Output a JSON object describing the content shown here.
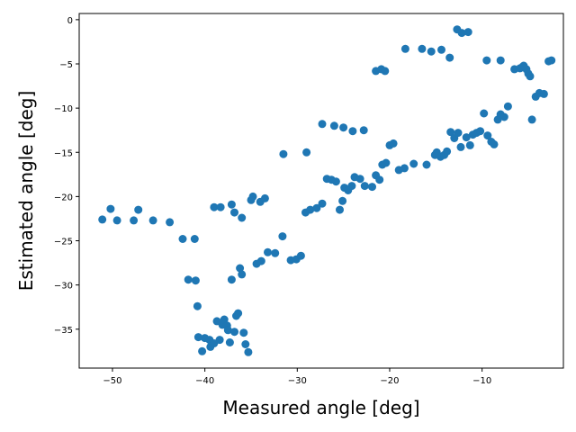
{
  "chart_data": {
    "type": "scatter",
    "title": "",
    "xlabel": "Measured angle [deg]",
    "ylabel": "Estimated angle [deg]",
    "xlim": [
      -53.6,
      -1.2
    ],
    "ylim": [
      -39.4,
      0.7
    ],
    "xticks": [
      -50,
      -40,
      -30,
      -20,
      -10
    ],
    "yticks": [
      0,
      -5,
      -10,
      -15,
      -20,
      -25,
      -30,
      -35
    ],
    "tick_labels_x": [
      "−50",
      "−40",
      "−30",
      "−20",
      "−10"
    ],
    "tick_labels_y": [
      "0",
      "−5",
      "−10",
      "−15",
      "−20",
      "−25",
      "−30",
      "−35"
    ],
    "grid": false,
    "legend": "none",
    "marker_color": "#1f77b4",
    "series": [
      {
        "x": [
          -51.1,
          -50.2,
          -49.5,
          -47.7,
          -47.2,
          -45.6,
          -43.8,
          -42.4,
          -41.8,
          -41.1,
          -41.0,
          -40.8,
          -40.7,
          -40.3,
          -40.0,
          -39.5,
          -39.4,
          -39.0,
          -38.7,
          -38.4,
          -38.1,
          -37.9,
          -37.6,
          -37.5,
          -37.3,
          -37.1,
          -36.8,
          -36.6,
          -36.4,
          -36.2,
          -36.0,
          -35.8,
          -35.6,
          -35.3,
          -34.8,
          -34.4,
          -33.9,
          -33.2,
          -32.4,
          -31.6,
          -30.7,
          -30.1,
          -29.6,
          -29.1,
          -28.6,
          -27.9,
          -27.3,
          -26.8,
          -26.3,
          -25.8,
          -25.4,
          -25.1,
          -24.9,
          -24.5,
          -24.1,
          -23.8,
          -23.2,
          -22.7,
          -21.9,
          -21.5,
          -21.1,
          -20.8,
          -20.4,
          -20.0,
          -19.6,
          -19.0,
          -18.4,
          -17.4,
          -16.0,
          -15.1,
          -14.9,
          -14.5,
          -14.1,
          -13.8,
          -13.4,
          -13.0,
          -12.6,
          -12.3,
          -11.7,
          -11.3,
          -11.0,
          -10.6,
          -10.2,
          -9.8,
          -9.4,
          -9.0,
          -8.7,
          -8.3,
          -8.0,
          -7.6,
          -7.2,
          -6.5,
          -5.9,
          -5.6,
          -5.2,
          -5.0,
          -4.8,
          -4.6,
          -4.2,
          -3.8,
          -3.3,
          -2.8,
          -2.5
        ],
        "y": [
          -22.6,
          -21.4,
          -22.7,
          -22.7,
          -21.5,
          -22.7,
          -22.9,
          -24.8,
          -29.4,
          -24.8,
          -29.5,
          -32.4,
          -35.9,
          -37.5,
          -36.0,
          -36.2,
          -37.0,
          -36.6,
          -34.1,
          -36.2,
          -34.5,
          -33.9,
          -34.6,
          -35.1,
          -36.5,
          -29.4,
          -35.3,
          -33.5,
          -33.2,
          -28.1,
          -28.8,
          -35.4,
          -36.7,
          -37.6,
          -20.0,
          -27.6,
          -27.3,
          -26.3,
          -26.4,
          -24.5,
          -27.2,
          -27.1,
          -26.7,
          -21.8,
          -21.5,
          -21.3,
          -20.8,
          -18.0,
          -18.1,
          -18.3,
          -21.5,
          -20.5,
          -19.0,
          -19.3,
          -18.8,
          -17.8,
          -18.0,
          -18.8,
          -18.9,
          -17.6,
          -18.1,
          -16.4,
          -16.2,
          -14.2,
          -14.0,
          -17.0,
          -16.8,
          -16.3,
          -16.4,
          -15.3,
          -15.0,
          -15.5,
          -15.3,
          -14.9,
          -12.7,
          -13.4,
          -12.8,
          -14.4,
          -13.3,
          -14.2,
          -13.0,
          -12.8,
          -12.6,
          -10.6,
          -13.1,
          -13.8,
          -14.1,
          -11.3,
          -10.7,
          -11.0,
          -9.8,
          -5.6,
          -5.5,
          -5.3,
          -5.6,
          -6.1,
          -6.4,
          -11.3,
          -8.7,
          -8.3,
          -8.4,
          -4.7,
          -4.6
        ],
        "x2": [
          -39.0,
          -38.3,
          -37.1,
          -36.8,
          -36.0,
          -35.0,
          -34.0,
          -33.5,
          -31.5,
          -29.0,
          -27.3,
          -26.0,
          -25.0,
          -24.0,
          -22.8,
          -21.5,
          -20.9,
          -20.5,
          -18.3,
          -16.5,
          -15.5,
          -14.4,
          -13.5,
          -12.7,
          -12.2,
          -11.5,
          -9.5,
          -8.0,
          -5.5
        ],
        "y2": [
          -21.2,
          -21.2,
          -20.9,
          -21.8,
          -22.4,
          -20.4,
          -20.6,
          -20.2,
          -15.2,
          -15.0,
          -11.8,
          -12.0,
          -12.2,
          -12.6,
          -12.5,
          -5.8,
          -5.6,
          -5.8,
          -3.3,
          -3.3,
          -3.6,
          -3.4,
          -4.3,
          -1.1,
          -1.5,
          -1.4,
          -4.6,
          -4.6,
          -5.2
        ]
      }
    ]
  }
}
